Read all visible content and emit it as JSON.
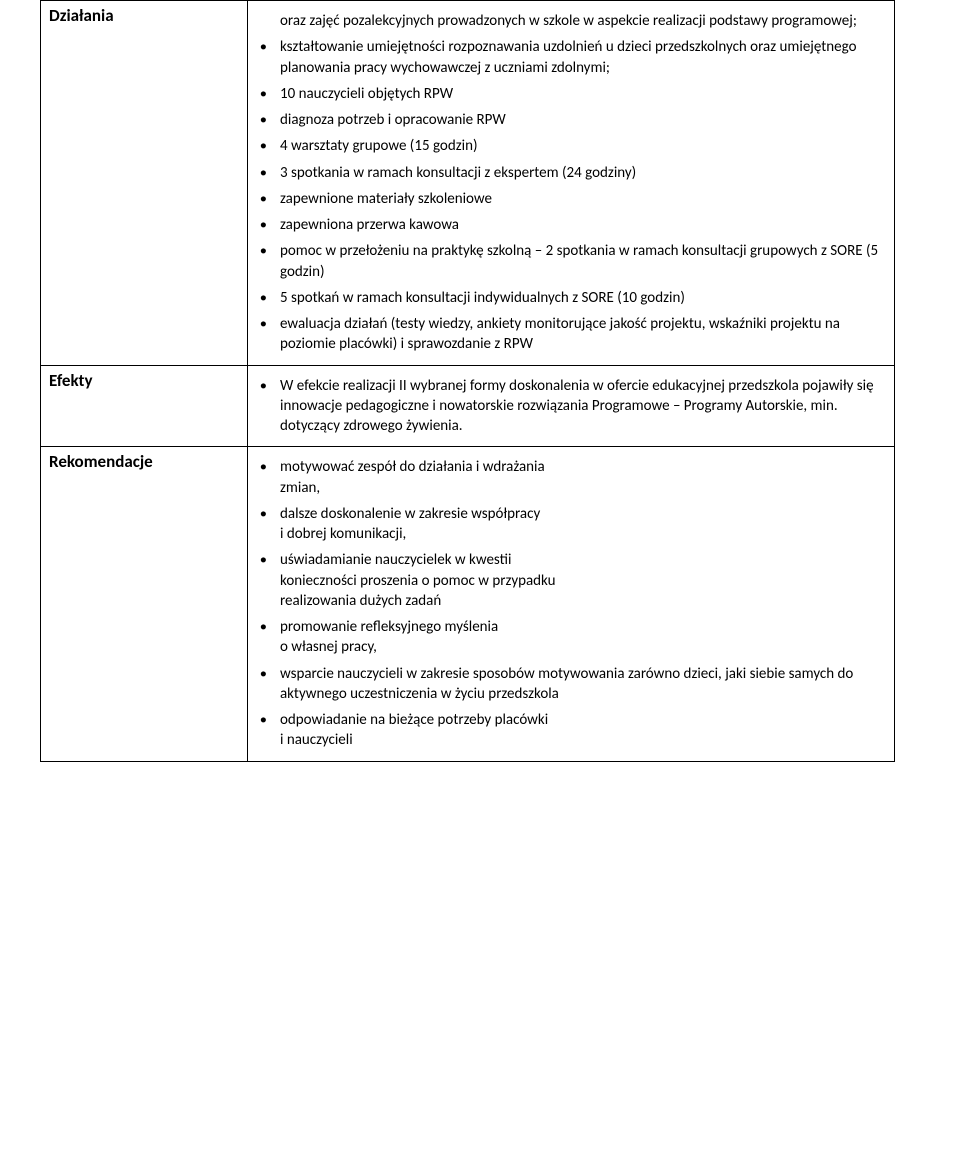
{
  "rows": {
    "dzialania": {
      "label": "Działania",
      "pre_items": [
        "oraz zajęć pozalekcyjnych prowadzonych w szkole w aspekcie realizacji podstawy programowej;",
        "kształtowanie umiejętności rozpoznawania uzdolnień u dzieci przedszkolnych oraz umiejętnego planowania pracy wychowawczej z uczniami zdolnymi;"
      ],
      "items": [
        "10 nauczycieli objętych RPW",
        "diagnoza potrzeb i opracowanie RPW",
        "4 warsztaty grupowe (15 godzin)",
        "3 spotkania w ramach konsultacji z ekspertem (24 godziny)",
        "zapewnione materiały szkoleniowe",
        "zapewniona przerwa kawowa",
        "pomoc w przełożeniu na praktykę szkolną – 2 spotkania w ramach konsultacji grupowych z SORE (5 godzin)",
        "5 spotkań w ramach konsultacji indywidualnych z SORE (10 godzin)",
        "ewaluacja działań (testy wiedzy, ankiety monitorujące jakość projektu, wskaźniki projektu na poziomie placówki) i sprawozdanie z RPW"
      ]
    },
    "efekty": {
      "label": "Efekty",
      "items": [
        "W efekcie realizacji II wybranej  formy doskonalenia w ofercie edukacyjnej przedszkola pojawiły się innowacje pedagogiczne i nowatorskie rozwiązania Programowe – Programy Autorskie, min.  dotyczący zdrowego żywienia."
      ]
    },
    "rekomendacje": {
      "label": "Rekomendacje",
      "items_multi": [
        [
          "motywować zespół do działania i wdrażania",
          "zmian,"
        ],
        [
          "dalsze doskonalenie w zakresie współpracy",
          "i dobrej komunikacji,"
        ],
        [
          "uświadamianie nauczycielek w kwestii",
          "konieczności proszenia o pomoc w przypadku",
          "realizowania dużych zadań"
        ],
        [
          "promowanie refleksyjnego myślenia",
          "o własnej pracy,"
        ],
        [
          "wsparcie nauczycieli w zakresie sposobów motywowania zarówno dzieci, jaki siebie samych do aktywnego uczestniczenia w życiu przedszkola"
        ],
        [
          "odpowiadanie na bieżące potrzeby placówki",
          "i nauczycieli"
        ]
      ]
    }
  }
}
